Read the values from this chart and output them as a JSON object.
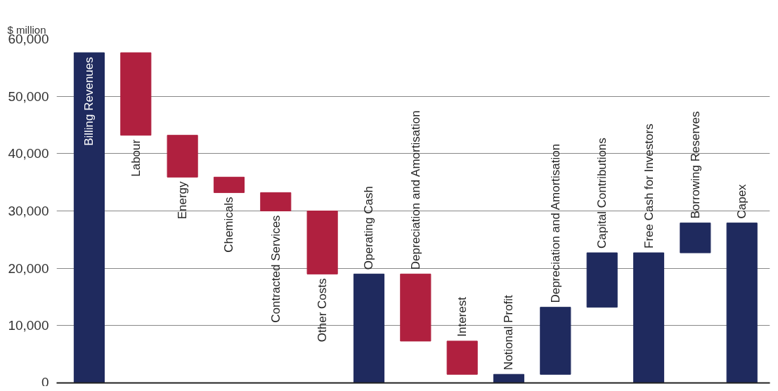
{
  "chart_data": {
    "type": "bar",
    "ylabel": "$ million",
    "categories": [
      "Billing Revenues",
      "Labour",
      "Energy",
      "Chemicals",
      "Contracted Services",
      "Other Costs",
      "Operating Cash",
      "Depreciation and Amortisation",
      "Interest",
      "Notional Profit",
      "Depreciation and Amortisation",
      "Capital Contributions",
      "Free Cash for Investors",
      "Borrowing Reserves",
      "Capex"
    ],
    "base": [
      0,
      43200,
      35900,
      33200,
      30000,
      19000,
      0,
      7300,
      1500,
      0,
      1500,
      13200,
      0,
      22700,
      0
    ],
    "values": [
      57600,
      14400,
      7300,
      2700,
      3200,
      11000,
      19000,
      11700,
      5800,
      1500,
      11700,
      9500,
      22700,
      5200,
      27900
    ],
    "colors": [
      "#1f2a5e",
      "#b0203f",
      "#b0203f",
      "#b0203f",
      "#b0203f",
      "#b0203f",
      "#1f2a5e",
      "#b0203f",
      "#b0203f",
      "#1f2a5e",
      "#1f2a5e",
      "#1f2a5e",
      "#1f2a5e",
      "#1f2a5e",
      "#1f2a5e"
    ],
    "ylim": [
      0,
      60000
    ],
    "yticks": [
      0,
      {
        "value": 10000,
        "label": "10,000"
      },
      {
        "value": 20000,
        "label": "20,000"
      },
      {
        "value": 30000,
        "label": "30,000"
      },
      {
        "value": 40000,
        "label": "40,000"
      },
      {
        "value": 50000,
        "label": "50,000"
      },
      {
        "value": 60000,
        "label": "60,000"
      }
    ],
    "grid": "y",
    "tick_labels": "y"
  }
}
